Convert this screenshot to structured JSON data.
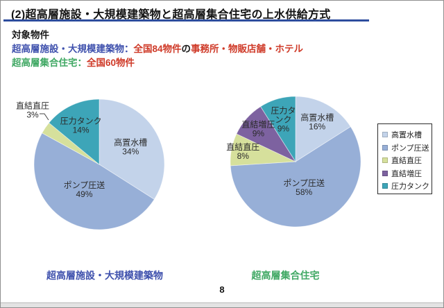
{
  "page": {
    "title": "(2)超高層施設・大規模建築物と超高層集合住宅の上水供給方式",
    "page_number": "8"
  },
  "colors": {
    "blue": "#3f51ad",
    "red": "#cf3a28",
    "green": "#3fa863",
    "black": "#1a1a1a",
    "underline": "#2d4d9e"
  },
  "info": {
    "heading": "対象物件",
    "lines": [
      {
        "segments": [
          {
            "text": "超高層施設・大規模建築物：",
            "color": "blue"
          },
          {
            "text": "全国84物件",
            "color": "red"
          },
          {
            "text": "の",
            "color": "black"
          },
          {
            "text": "事務所・物販店舗・ホテル",
            "color": "red"
          }
        ]
      },
      {
        "segments": [
          {
            "text": "超高層集合住宅：",
            "color": "green"
          },
          {
            "text": "全国60物件",
            "color": "red"
          }
        ]
      }
    ]
  },
  "legend": {
    "items": [
      {
        "label": "高置水槽",
        "color": "#c3d3ea"
      },
      {
        "label": "ポンプ圧送",
        "color": "#97afd7"
      },
      {
        "label": "直結直圧",
        "color": "#d6e09c"
      },
      {
        "label": "直結増圧",
        "color": "#7d62a0"
      },
      {
        "label": "圧力タンク",
        "color": "#3da5b8"
      }
    ]
  },
  "chart_data": [
    {
      "type": "pie",
      "caption": "超高層施設・大規模建築物",
      "caption_color": "blue",
      "unit": "%",
      "slices": [
        {
          "label": "高置水槽",
          "value": 34,
          "pct": "34%",
          "color": "#c3d3ea",
          "label_style": "inside",
          "label_d": 0.55
        },
        {
          "label": "ポンプ圧送",
          "value": 49,
          "pct": "49%",
          "color": "#97afd7",
          "label_style": "inside",
          "label_d": 0.45
        },
        {
          "label": "直結直圧",
          "value": 3,
          "pct": "3%",
          "color": "#d6e09c",
          "label_style": "outside",
          "label_dx": -96,
          "label_dy": -78
        },
        {
          "label": "圧力タンク",
          "value": 14,
          "pct": "14%",
          "color": "#3da5b8",
          "label_style": "inside",
          "label_d": 0.66,
          "label_lines": [
            "圧力タンク",
            "14%"
          ]
        }
      ]
    },
    {
      "type": "pie",
      "caption": "超高層集合住宅",
      "caption_color": "green",
      "unit": "%",
      "slices": [
        {
          "label": "高置水槽",
          "value": 16,
          "pct": "16%",
          "color": "#c3d3ea",
          "label_style": "inside",
          "label_d": 0.69
        },
        {
          "label": "ポンプ圧送",
          "value": 58,
          "pct": "58%",
          "color": "#97afd7",
          "label_style": "inside",
          "label_d": 0.42
        },
        {
          "label": "直結直圧",
          "value": 8,
          "pct": "8%",
          "color": "#d6e09c",
          "label_style": "inside",
          "label_d": 0.82
        },
        {
          "label": "直結増圧",
          "value": 9,
          "pct": "9%",
          "color": "#7d62a0",
          "label_style": "inside",
          "label_d": 0.76
        },
        {
          "label": "圧力タンク",
          "value": 9,
          "pct": "9%",
          "color": "#3da5b8",
          "label_style": "inside",
          "label_d": 0.67,
          "label_lines": [
            "圧力タ",
            "ンク",
            "9%"
          ]
        }
      ]
    }
  ]
}
